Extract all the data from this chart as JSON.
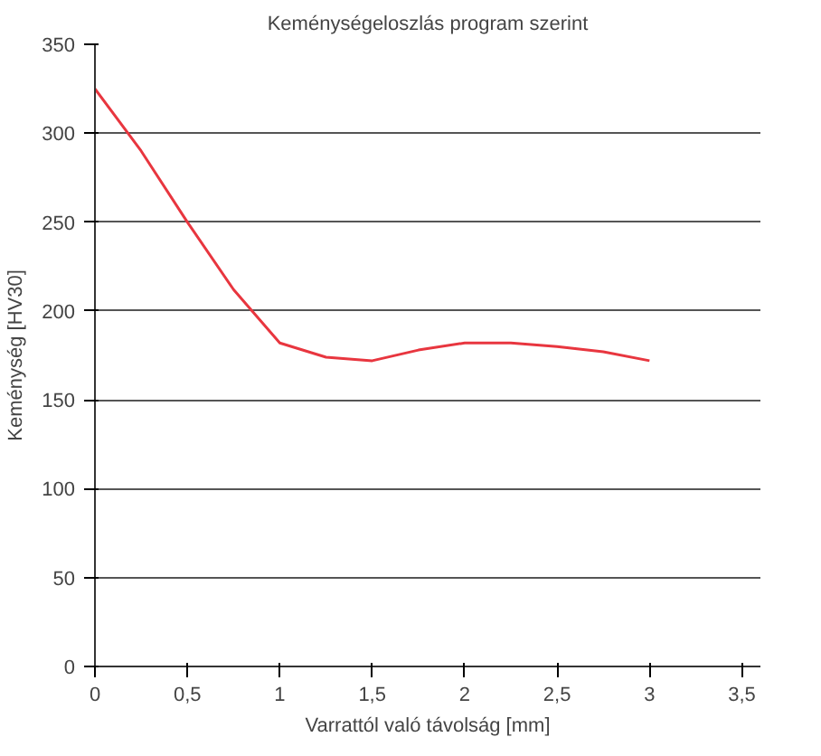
{
  "chart_data": {
    "type": "line",
    "title": "Keménységeloszlás program szerint",
    "xlabel": "Varrattól való távolság [mm]",
    "ylabel": "Keménység [HV30]",
    "x": [
      0,
      0.25,
      0.5,
      0.75,
      1,
      1.25,
      1.5,
      1.75,
      2,
      2.25,
      2.5,
      2.75,
      3
    ],
    "series": [
      {
        "color": "#e8363f",
        "values": [
          325,
          290,
          250,
          212,
          182,
          174,
          172,
          178,
          182,
          182,
          180,
          177,
          172
        ]
      }
    ],
    "xlim": [
      0,
      3.6
    ],
    "ylim": [
      0,
      350
    ],
    "xticks": [
      0,
      {
        "value": 0.5,
        "label": "0,5"
      },
      1,
      {
        "value": 1.5,
        "label": "1,5"
      },
      2,
      {
        "value": 2.5,
        "label": "2,5"
      },
      3,
      {
        "value": 3.5,
        "label": "3,5"
      }
    ],
    "yticks": [
      0,
      50,
      100,
      150,
      200,
      250,
      300,
      350
    ],
    "grid": "y",
    "marker": "none",
    "line_style": "solid"
  }
}
